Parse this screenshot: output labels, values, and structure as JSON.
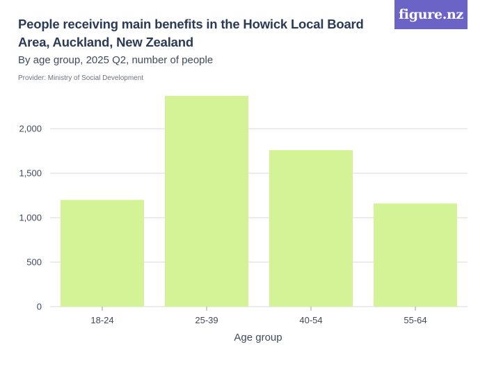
{
  "header": {
    "title": "People receiving main benefits in the Howick Local Board Area, Auckland, New Zealand",
    "subtitle": "By age group, 2025 Q2, number of people",
    "provider": "Provider: Ministry of Social Development",
    "logo_text": "figure.nz"
  },
  "colors": {
    "bar": "#d4f296",
    "logo_bg": "#6c63c7",
    "grid": "#d9d9d9",
    "axis": "#3f4a5c"
  },
  "chart_data": {
    "type": "bar",
    "categories": [
      "18-24",
      "25-39",
      "40-54",
      "55-64"
    ],
    "series": [
      {
        "values": [
          1200,
          2370,
          1760,
          1160
        ]
      }
    ],
    "title": "People receiving main benefits in the Howick Local Board Area, Auckland, New Zealand",
    "subtitle": "By age group, 2025 Q2, number of people",
    "xlabel": "Age group",
    "ylabel": "",
    "ylim": [
      0,
      2400
    ],
    "yticks": [
      0,
      500,
      1000,
      1500,
      2000
    ],
    "ytick_labels": [
      "0",
      "500",
      "1,000",
      "1,500",
      "2,000"
    ],
    "grid": true,
    "legend": "none"
  }
}
